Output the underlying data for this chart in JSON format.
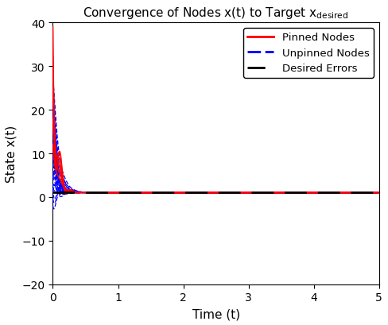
{
  "title": "Convergence of Nodes x(t) to Target x",
  "title_sub": "desired",
  "xlabel": "Time (t)",
  "ylabel": "State x(t)",
  "xlim": [
    0,
    5
  ],
  "ylim": [
    -20,
    40
  ],
  "yticks": [
    -20,
    -10,
    0,
    10,
    20,
    30,
    40
  ],
  "xticks": [
    0,
    1,
    2,
    3,
    4,
    5
  ],
  "target": 1.0,
  "pinned_color": "#FF0000",
  "unpinned_color": "#0000FF",
  "desired_color": "#000000",
  "legend_entries": [
    "Pinned Nodes",
    "Unpinned Nodes",
    "Desired Errors"
  ],
  "t_end": 5.0,
  "n_points": 3000,
  "background_color": "#ffffff"
}
